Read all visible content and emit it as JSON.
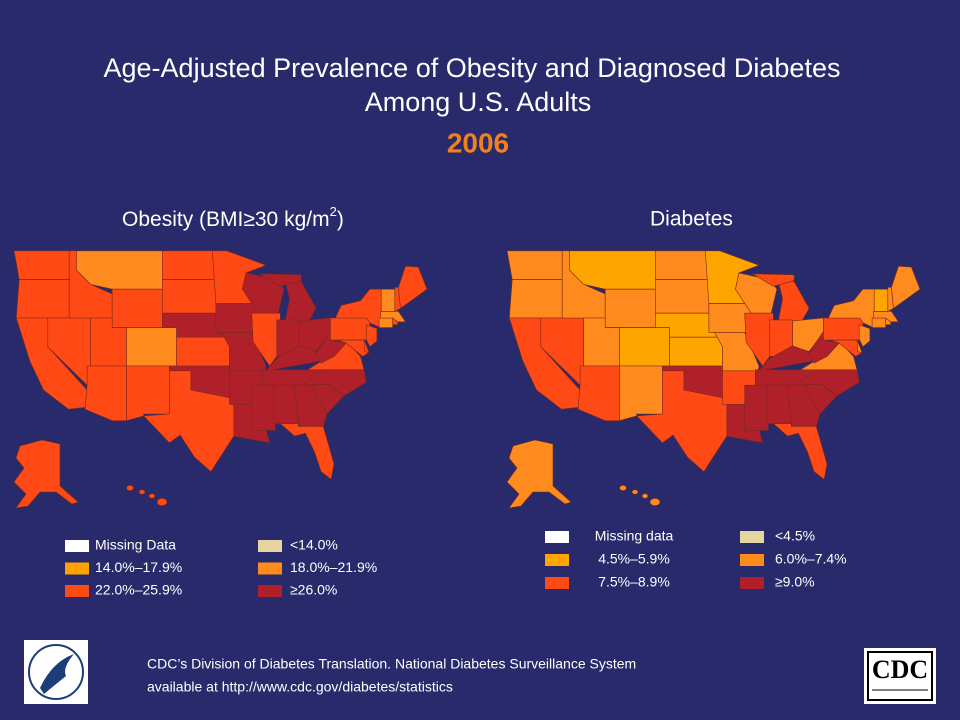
{
  "header": {
    "title_lines": [
      "Age-Adjusted Prevalence of Obesity and Diagnosed Diabetes",
      "Among U.S. Adults"
    ],
    "year": "2006",
    "year_color": "#f0821e"
  },
  "maps": [
    {
      "title_parts": [
        "Obesity (BMI≥30 kg/m",
        "2",
        ")"
      ],
      "legend": [
        {
          "label": "Missing Data",
          "color": "#ffffff"
        },
        {
          "label": "14.0%–17.9%",
          "color": "#ffa100"
        },
        {
          "label": "22.0%–25.9%",
          "color": "#ff4a16"
        },
        {
          "label": "<14.0%",
          "color": "#e6d5a0"
        },
        {
          "label": "18.0%–21.9%",
          "color": "#ff8a1e"
        },
        {
          "label": "≥26.0%",
          "color": "#b0202a"
        }
      ]
    },
    {
      "title_parts": [
        "Diabetes"
      ],
      "legend": [
        {
          "label": "Missing data",
          "color": "#ffffff"
        },
        {
          "label": "4.5%–5.9%",
          "color": "#ffa500"
        },
        {
          "label": "7.5%–8.9%",
          "color": "#ff4a16"
        },
        {
          "label": "<4.5%",
          "color": "#e6d5a0"
        },
        {
          "label": "6.0%–7.4%",
          "color": "#ff8a1e"
        },
        {
          "label": "≥9.0%",
          "color": "#b0202a"
        }
      ]
    }
  ],
  "footer": {
    "source_lines": [
      "CDC’s Division of Diabetes Translation. National Diabetes Surveillance System",
      "available at http://www.cdc.gov/diabetes/statistics"
    ],
    "logo_text": "CDC"
  }
}
